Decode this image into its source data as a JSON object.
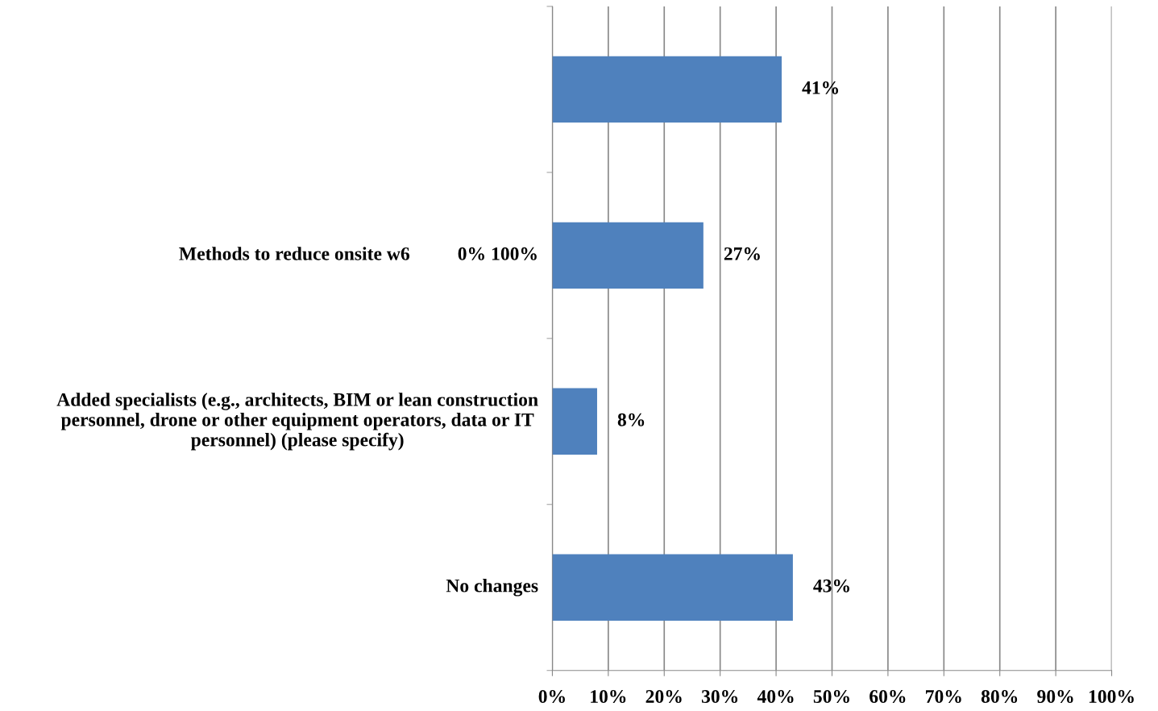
{
  "chart_data": {
    "type": "bar",
    "orientation": "horizontal",
    "categories": [
      null,
      "Methods to reduce onsite w6          0% 100%",
      "Added specialists (e.g., architects, BIM or lean construction personnel, drone or other equipment operators, data or IT personnel) (please specify)",
      "No changes"
    ],
    "values": [
      41,
      27,
      8,
      43
    ],
    "color": "#4f81bd",
    "data_labels": true,
    "value_labels": [
      "41%",
      "27%",
      "8%",
      "43%"
    ],
    "xlim": [
      0,
      100
    ],
    "xticks": [
      {
        "value": 0,
        "label": "0%"
      },
      {
        "value": 10,
        "label": "10%"
      },
      {
        "value": 20,
        "label": "20%"
      },
      {
        "value": 30,
        "label": "30%"
      },
      {
        "value": 40,
        "label": "40%"
      },
      {
        "value": 50,
        "label": "50%"
      },
      {
        "value": 60,
        "label": "60%"
      },
      {
        "value": 70,
        "label": "70%"
      },
      {
        "value": 80,
        "label": "80%"
      },
      {
        "value": 90,
        "label": "90%"
      },
      {
        "value": 100,
        "label": "100%"
      }
    ],
    "grid": "x"
  }
}
